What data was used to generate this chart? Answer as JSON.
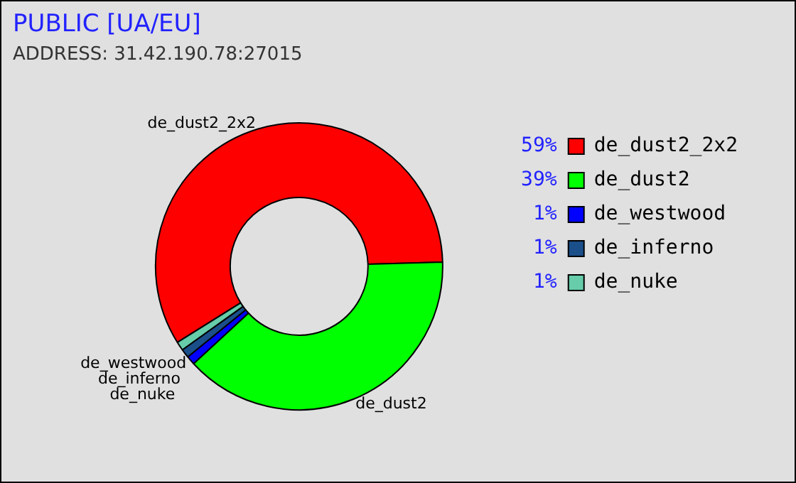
{
  "chart_data": {
    "type": "donut",
    "title": "PUBLIC [UA/EU]",
    "subtitle": "ADDRESS: 31.42.190.78:27015",
    "categories": [
      "de_dust2_2x2",
      "de_dust2",
      "de_westwood",
      "de_inferno",
      "de_nuke"
    ],
    "values": [
      59,
      39,
      1,
      1,
      1
    ],
    "colors": [
      "#ff0000",
      "#00ff00",
      "#0000ff",
      "#1a4f8a",
      "#66ccaa"
    ],
    "value_labels": [
      "59%",
      "39%",
      "1%",
      "1%",
      "1%"
    ],
    "legend": "top right"
  }
}
